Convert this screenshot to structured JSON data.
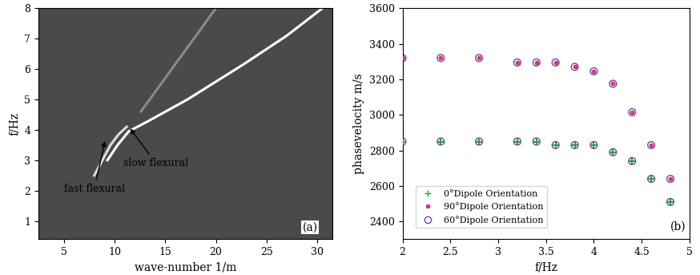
{
  "chart_data": [
    {
      "type": "line",
      "xlabel": "wave-number 1/m",
      "ylabel": "f/Hz",
      "xlim": [
        2.5,
        31.5
      ],
      "ylim": [
        0.4,
        8
      ],
      "xticks": [
        5,
        10,
        15,
        20,
        25,
        30
      ],
      "yticks": [
        1,
        2,
        3,
        4,
        5,
        6,
        7,
        8
      ],
      "series": [
        {
          "color": "#ffffff",
          "line_style": "solid",
          "x": [
            9.3,
            10.3,
            11.4,
            13.4,
            17.2,
            22.7,
            27.0,
            30.5
          ],
          "values": [
            3.0,
            3.5,
            3.95,
            4.3,
            5.0,
            6.15,
            7.1,
            8.0
          ]
        },
        {
          "color": "#dddddd",
          "line_style": "solid",
          "x": [
            8.0,
            8.8,
            9.6,
            10.4,
            11.2
          ],
          "values": [
            2.5,
            3.0,
            3.5,
            3.85,
            4.1
          ]
        },
        {
          "color": "#8a8a8a",
          "line_style": "solid",
          "x": [
            12.6,
            20.0
          ],
          "values": [
            4.6,
            8.0
          ]
        }
      ],
      "annotations": [
        {
          "text": "fast flexural",
          "xy": [
            9.1,
            3.7
          ],
          "xytext": [
            8.0,
            2.05
          ]
        },
        {
          "text": "slow flexural",
          "xy": [
            11.4,
            4.1
          ],
          "xytext": [
            14.1,
            2.9
          ]
        },
        {
          "text": "(a)",
          "xy": [
            29.3,
            0.8
          ]
        }
      ]
    },
    {
      "type": "scatter",
      "xlabel": "f/Hz",
      "ylabel": "phasevelocity m/s",
      "xlim": [
        2,
        5
      ],
      "ylim": [
        2300,
        3600
      ],
      "xticks": [
        2,
        2.5,
        3,
        3.5,
        4,
        4.5,
        5
      ],
      "yticks": [
        2400,
        2600,
        2800,
        3000,
        3200,
        3400,
        3600
      ],
      "legend": "lower left",
      "series": [
        {
          "name": "0°Dipole Orientation",
          "color": "#2ca02c",
          "marker": "plus",
          "x": [
            2,
            2.4,
            2.8,
            3.2,
            3.4,
            3.6,
            3.8,
            4.0,
            4.2,
            4.4,
            4.6,
            4.8
          ],
          "values": [
            2850,
            2850,
            2850,
            2850,
            2850,
            2830,
            2830,
            2830,
            2790,
            2740,
            2640,
            2510
          ]
        },
        {
          "name": "90°Dipole Orientation",
          "color": "#e0307a",
          "marker": "dot",
          "x": [
            2,
            2.4,
            2.8,
            3.2,
            3.4,
            3.6,
            3.8,
            4.0,
            4.2,
            4.4,
            4.6,
            4.8
          ],
          "values": [
            3320,
            3320,
            3320,
            3295,
            3295,
            3295,
            3270,
            3245,
            3175,
            3015,
            2830,
            2640
          ]
        },
        {
          "name": "60°Dipole Orientation",
          "color": "#6a4c9c",
          "marker": "circle",
          "x": [
            2,
            2.4,
            2.8,
            3.2,
            3.4,
            3.6,
            3.8,
            4.0,
            4.2,
            4.4,
            4.6,
            4.8,
            2,
            2.4,
            2.8,
            3.2,
            3.4,
            3.6,
            3.8,
            4.0,
            4.2,
            4.4,
            4.6,
            4.8
          ],
          "values": [
            2850,
            2850,
            2850,
            2850,
            2850,
            2830,
            2830,
            2830,
            2790,
            2740,
            2640,
            2510,
            3320,
            3320,
            3320,
            3295,
            3295,
            3295,
            3270,
            3245,
            3175,
            3015,
            2830,
            2640
          ]
        }
      ],
      "annotations": [
        {
          "text": "(b)",
          "xy": [
            4.88,
            2370
          ]
        }
      ]
    }
  ]
}
